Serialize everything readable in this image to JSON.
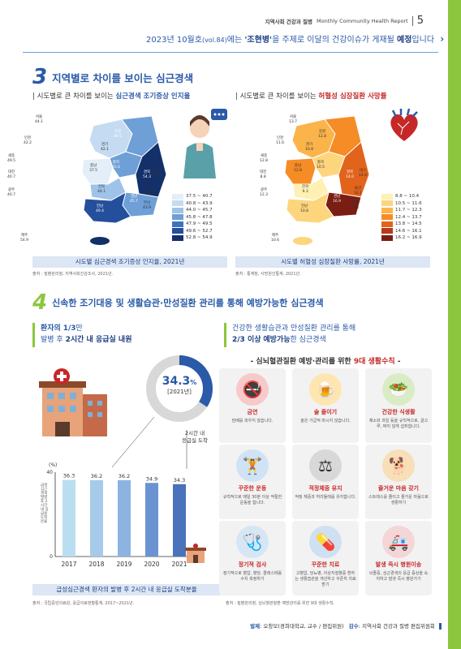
{
  "header": {
    "publication": "지역사회 건강과 질병",
    "report_name": "Monthly Community Health Report",
    "page_number": "5"
  },
  "notice": {
    "text_before": "2023년 10월호",
    "vol": "(vol.84)",
    "text_mid": "에는",
    "topic": "'조현병'",
    "text_mid2": "을 주제로 이달의 건강이슈가 게재될",
    "scheduled": "예정",
    "text_end": "입니다"
  },
  "section3": {
    "number": "3",
    "title": "지역별로 차이를 보이는 심근경색",
    "left": {
      "subtitle_prefix": "| 시도별로 큰 차이를 보이는",
      "subtitle_highlight": "심근경색 조기증상 인지율",
      "caption": "시도별 심근경색 조기증상 인지율, 2021년",
      "source": "출처 : 질병관리청, 지역사회건강조사, 2021년.",
      "legend": [
        {
          "label": "37.5 ~ 40.7",
          "color": "#e3eef9"
        },
        {
          "label": "40.8 ~ 43.9",
          "color": "#c4dbf1"
        },
        {
          "label": "44.0 ~ 45.7",
          "color": "#9fc3e8"
        },
        {
          "label": "45.8 ~ 47.8",
          "color": "#6e9fd6"
        },
        {
          "label": "47.9 ~ 49.5",
          "color": "#3f72bd"
        },
        {
          "label": "49.6 ~ 52.7",
          "color": "#244f9c"
        },
        {
          "label": "52.8 ~ 54.9",
          "color": "#14306a"
        }
      ],
      "regions": [
        {
          "name": "서울",
          "value": "44.1"
        },
        {
          "name": "인천",
          "value": "42.2"
        },
        {
          "name": "경기",
          "value": "42.1"
        },
        {
          "name": "강원",
          "value": "46.5"
        },
        {
          "name": "세종",
          "value": "49.5"
        },
        {
          "name": "충북",
          "value": "45.6"
        },
        {
          "name": "충남",
          "value": "37.5"
        },
        {
          "name": "대전",
          "value": "40.7"
        },
        {
          "name": "경북",
          "value": "54.3"
        },
        {
          "name": "대구",
          "value": "52.7"
        },
        {
          "name": "전북",
          "value": "44.1"
        },
        {
          "name": "울산",
          "value": "45.8"
        },
        {
          "name": "광주",
          "value": "40.7"
        },
        {
          "name": "경남",
          "value": "45.7"
        },
        {
          "name": "부산",
          "value": "43.9"
        },
        {
          "name": "전남",
          "value": "49.4"
        },
        {
          "name": "제주",
          "value": "54.9"
        }
      ]
    },
    "right": {
      "subtitle_prefix": "| 시도별로 큰 차이를 보이는",
      "subtitle_highlight": "허혈성 심장질환 사망률",
      "caption": "시도별 허혈성 심장질환 사망률, 2021년",
      "source": "출처 : 통계청, 사망원인통계, 2021년.",
      "legend": [
        {
          "label": "8.8 ~ 10.4",
          "color": "#fff0b3"
        },
        {
          "label": "10.5 ~ 11.6",
          "color": "#fdd57c"
        },
        {
          "label": "11.7 ~ 12.3",
          "color": "#fbb44a"
        },
        {
          "label": "12.4 ~ 13.7",
          "color": "#f58c25"
        },
        {
          "label": "13.8 ~ 14.5",
          "color": "#e2631c"
        },
        {
          "label": "14.6 ~ 16.1",
          "color": "#b63a1a"
        },
        {
          "label": "16.2 ~ 16.9",
          "color": "#7a1d12"
        }
      ],
      "regions": [
        {
          "name": "서울",
          "value": "13.7"
        },
        {
          "name": "인천",
          "value": "11.6"
        },
        {
          "name": "경기",
          "value": "10.8"
        },
        {
          "name": "강원",
          "value": "12.8"
        },
        {
          "name": "세종",
          "value": "12.8"
        },
        {
          "name": "충북",
          "value": "10.5"
        },
        {
          "name": "충남",
          "value": "12.8"
        },
        {
          "name": "대전",
          "value": "8.8"
        },
        {
          "name": "경북",
          "value": "14.0"
        },
        {
          "name": "대구",
          "value": "14.6"
        },
        {
          "name": "전북",
          "value": "9.3"
        },
        {
          "name": "울산",
          "value": "16.1"
        },
        {
          "name": "광주",
          "value": "12.3"
        },
        {
          "name": "경남",
          "value": "16.9"
        },
        {
          "name": "부산",
          "value": "14.5"
        },
        {
          "name": "전남",
          "value": "10.8"
        },
        {
          "name": "제주",
          "value": "10.6"
        }
      ]
    }
  },
  "section4": {
    "number": "4",
    "title": "신속한 조기대응 및 생활습관·만성질환 관리를 통해 예방가능한 심근경색",
    "left_headline_1_a": "환자의",
    "left_headline_1_b": "1/3",
    "left_headline_1_c": "만",
    "left_headline_2_a": "발병 후",
    "left_headline_2_b": "2시간 내 응급실 내원",
    "right_headline_1": "건강한 생활습관과 만성질환 관리를 통해",
    "right_headline_2_a": "2/3 이상",
    "right_headline_2_b": "예방가능",
    "right_headline_2_c": "한 심근경색",
    "donut_value": "34.3",
    "donut_unit": "%",
    "donut_year": "[2021년]",
    "donut_note_1": "2시간 내",
    "donut_note_2": "응급실 도착",
    "chart_caption": "급성심근경색 환자의 발병 후 2시간 내 응급실 도착분율",
    "chart_source": "출처 : 국립중앙의료원, 응급의료현황통계, 2017~2021년.",
    "tips_title_a": "- 심뇌혈관질환 예방·관리를 위한",
    "tips_title_b": "9대 생활수칙",
    "tips_title_c": "-",
    "tips_source": "출처 : 질병관리청, 심뇌혈관질환 예방관리를 위한 9대 생활수칙.",
    "tips": [
      {
        "title": "금연",
        "desc": "담배를 피우지 않습니다.",
        "icon": "no-smoking-icon",
        "color": "#f7c9c9",
        "glyph": "🚭"
      },
      {
        "title": "술 줄이기",
        "desc": "술은 가급적 마시지 않습니다.",
        "icon": "beer-icon",
        "color": "#ffe5b0",
        "glyph": "🍺"
      },
      {
        "title": "건강한 식생활",
        "desc": "채소와 과일 등을 규칙적으로, 골고루, 짜지 않게 섭취합니다.",
        "icon": "vegetables-icon",
        "color": "#d9ecc4",
        "glyph": "🥗"
      },
      {
        "title": "꾸준한 운동",
        "desc": "규칙적으로 매일 30분 이상 적절한 운동을 합니다.",
        "icon": "dumbbell-icon",
        "color": "#cfe3f5",
        "glyph": "🏋"
      },
      {
        "title": "적정체중 유지",
        "desc": "적정 체중과 허리둘레를 유지합니다.",
        "icon": "scale-icon",
        "color": "#d8d8d8",
        "glyph": "⚖"
      },
      {
        "title": "즐거운 마음 갖기",
        "desc": "스트레스를 줄이고 즐거운 마음으로 생활하기",
        "icon": "dog-walk-icon",
        "color": "#f8dfb8",
        "glyph": "🐕"
      },
      {
        "title": "정기적 검사",
        "desc": "정기적으로 혈압, 혈당, 콜레스테롤 수치 측정하기",
        "icon": "checkup-icon",
        "color": "#d6e6f5",
        "glyph": "🩺"
      },
      {
        "title": "꾸준한 치료",
        "desc": "고혈압, 당뇨병, 이상지질혈증 환자는 생활습관을 개선하고 꾸준히 치료받기",
        "icon": "medicine-icon",
        "color": "#cfe0f3",
        "glyph": "💊"
      },
      {
        "title": "발생 즉시 병원이송",
        "desc": "뇌졸중, 심근경색의 응급 증상을 숙지하고 발생 즉시 병원가기",
        "icon": "ambulance-icon",
        "color": "#f4d6d6",
        "glyph": "🚑"
      }
    ]
  },
  "chart_data": {
    "type": "bar",
    "title": "",
    "categories": [
      "2017",
      "2018",
      "2019",
      "2020",
      "2021"
    ],
    "values": [
      36.3,
      36.2,
      36.2,
      34.9,
      34.3
    ],
    "xlabel": "",
    "ylabel": "",
    "ylabel_text": "급성심근경색 발병 후 2시간 내 응급실 도착분율",
    "y_unit": "(%)",
    "ylim": [
      0,
      40
    ],
    "yticks": [
      "0",
      "40"
    ],
    "bar_colors": [
      "#b9def0",
      "#a6cbea",
      "#8db3e0",
      "#6b93d2",
      "#4a72bd"
    ]
  },
  "footer": {
    "label_a": "발제",
    "text_a": ": 오창모(경희대학교, 교수 / 편집위원)",
    "label_b": "감수",
    "text_b": ": 지역사회 건강과 질병 편집위원회"
  },
  "colors": {
    "accent_blue": "#2a5aa8",
    "accent_green": "#8cc63f",
    "accent_red": "#c62828"
  }
}
